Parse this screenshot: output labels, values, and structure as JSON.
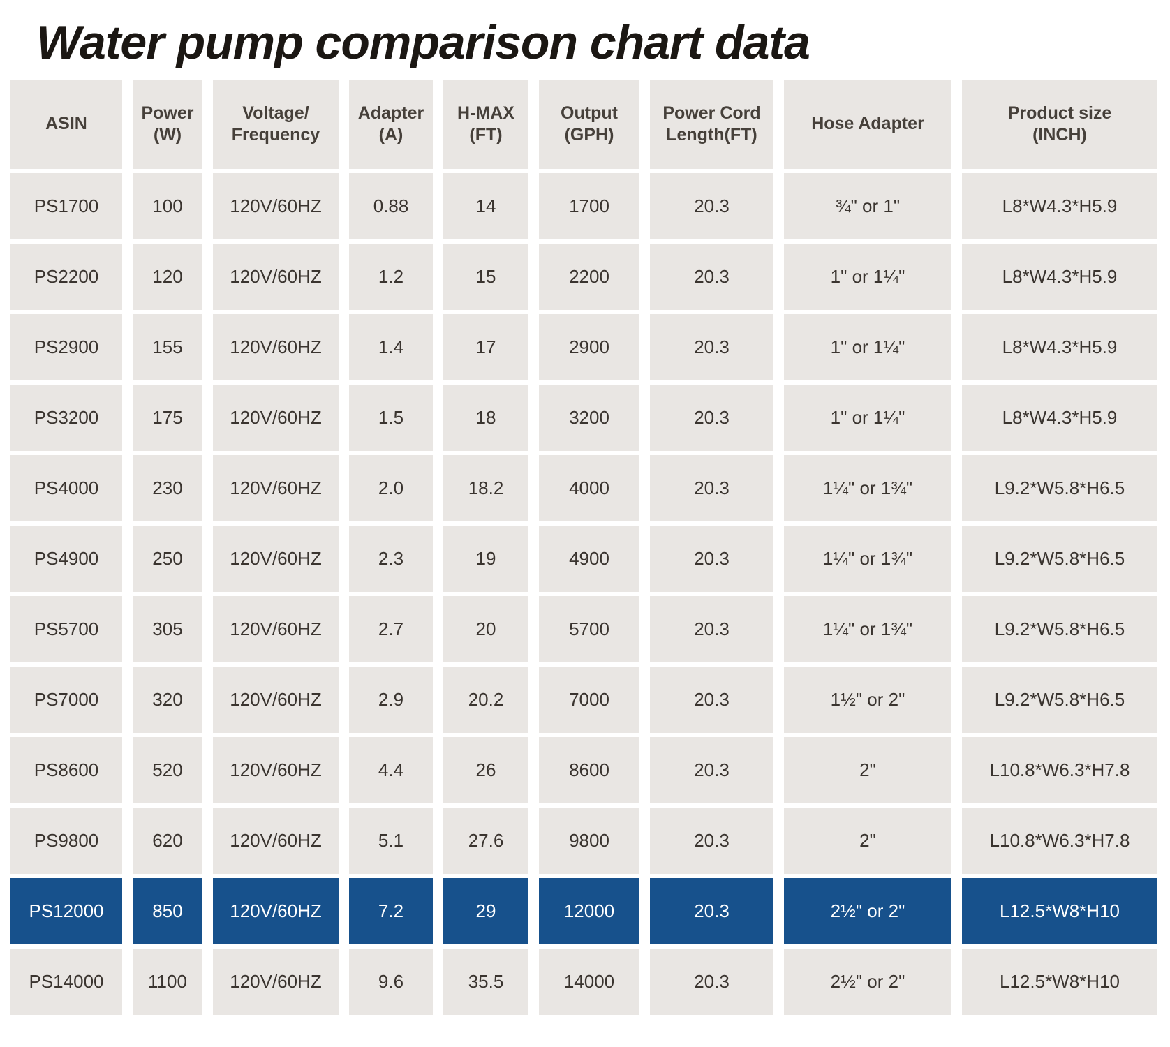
{
  "chart_data": {
    "type": "table",
    "title": "Water pump comparison chart data",
    "columns": [
      "ASIN",
      "Power\n(W)",
      "Voltage/\nFrequency",
      "Adapter\n(A)",
      "H-MAX\n(FT)",
      "Output\n(GPH)",
      "Power Cord\nLength(FT)",
      "Hose Adapter",
      "Product size\n(INCH)"
    ],
    "rows": [
      {
        "highlighted": false,
        "cells": [
          "PS1700",
          "100",
          "120V/60HZ",
          "0.88",
          "14",
          "1700",
          "20.3",
          "¾\" or 1\"",
          "L8*W4.3*H5.9"
        ]
      },
      {
        "highlighted": false,
        "cells": [
          "PS2200",
          "120",
          "120V/60HZ",
          "1.2",
          "15",
          "2200",
          "20.3",
          "1\" or 1¼\"",
          "L8*W4.3*H5.9"
        ]
      },
      {
        "highlighted": false,
        "cells": [
          "PS2900",
          "155",
          "120V/60HZ",
          "1.4",
          "17",
          "2900",
          "20.3",
          "1\" or 1¼\"",
          "L8*W4.3*H5.9"
        ]
      },
      {
        "highlighted": false,
        "cells": [
          "PS3200",
          "175",
          "120V/60HZ",
          "1.5",
          "18",
          "3200",
          "20.3",
          "1\" or 1¼\"",
          "L8*W4.3*H5.9"
        ]
      },
      {
        "highlighted": false,
        "cells": [
          "PS4000",
          "230",
          "120V/60HZ",
          "2.0",
          "18.2",
          "4000",
          "20.3",
          "1¼\" or 1¾\"",
          "L9.2*W5.8*H6.5"
        ]
      },
      {
        "highlighted": false,
        "cells": [
          "PS4900",
          "250",
          "120V/60HZ",
          "2.3",
          "19",
          "4900",
          "20.3",
          "1¼\" or 1¾\"",
          "L9.2*W5.8*H6.5"
        ]
      },
      {
        "highlighted": false,
        "cells": [
          "PS5700",
          "305",
          "120V/60HZ",
          "2.7",
          "20",
          "5700",
          "20.3",
          "1¼\" or 1¾\"",
          "L9.2*W5.8*H6.5"
        ]
      },
      {
        "highlighted": false,
        "cells": [
          "PS7000",
          "320",
          "120V/60HZ",
          "2.9",
          "20.2",
          "7000",
          "20.3",
          "1½\" or 2\"",
          "L9.2*W5.8*H6.5"
        ]
      },
      {
        "highlighted": false,
        "cells": [
          "PS8600",
          "520",
          "120V/60HZ",
          "4.4",
          "26",
          "8600",
          "20.3",
          "2\"",
          "L10.8*W6.3*H7.8"
        ]
      },
      {
        "highlighted": false,
        "cells": [
          "PS9800",
          "620",
          "120V/60HZ",
          "5.1",
          "27.6",
          "9800",
          "20.3",
          "2\"",
          "L10.8*W6.3*H7.8"
        ]
      },
      {
        "highlighted": true,
        "cells": [
          "PS12000",
          "850",
          "120V/60HZ",
          "7.2",
          "29",
          "12000",
          "20.3",
          "2½\" or 2\"",
          "L12.5*W8*H10"
        ]
      },
      {
        "highlighted": false,
        "cells": [
          "PS14000",
          "1100",
          "120V/60HZ",
          "9.6",
          "35.5",
          "14000",
          "20.3",
          "2½\" or 2\"",
          "L12.5*W8*H10"
        ]
      }
    ],
    "highlighted_row": "PS12000",
    "layout_hints": {
      "grid": "separated-cells-on-white",
      "header_position": "top"
    }
  },
  "colors": {
    "cell_bg": "#e9e6e3",
    "highlight_row_bg": "#17518c",
    "highlight_row_text": "#ffffff",
    "body_text": "#3a342f",
    "header_text": "#46403a",
    "title_text": "#1b1713",
    "background": "#ffffff"
  }
}
